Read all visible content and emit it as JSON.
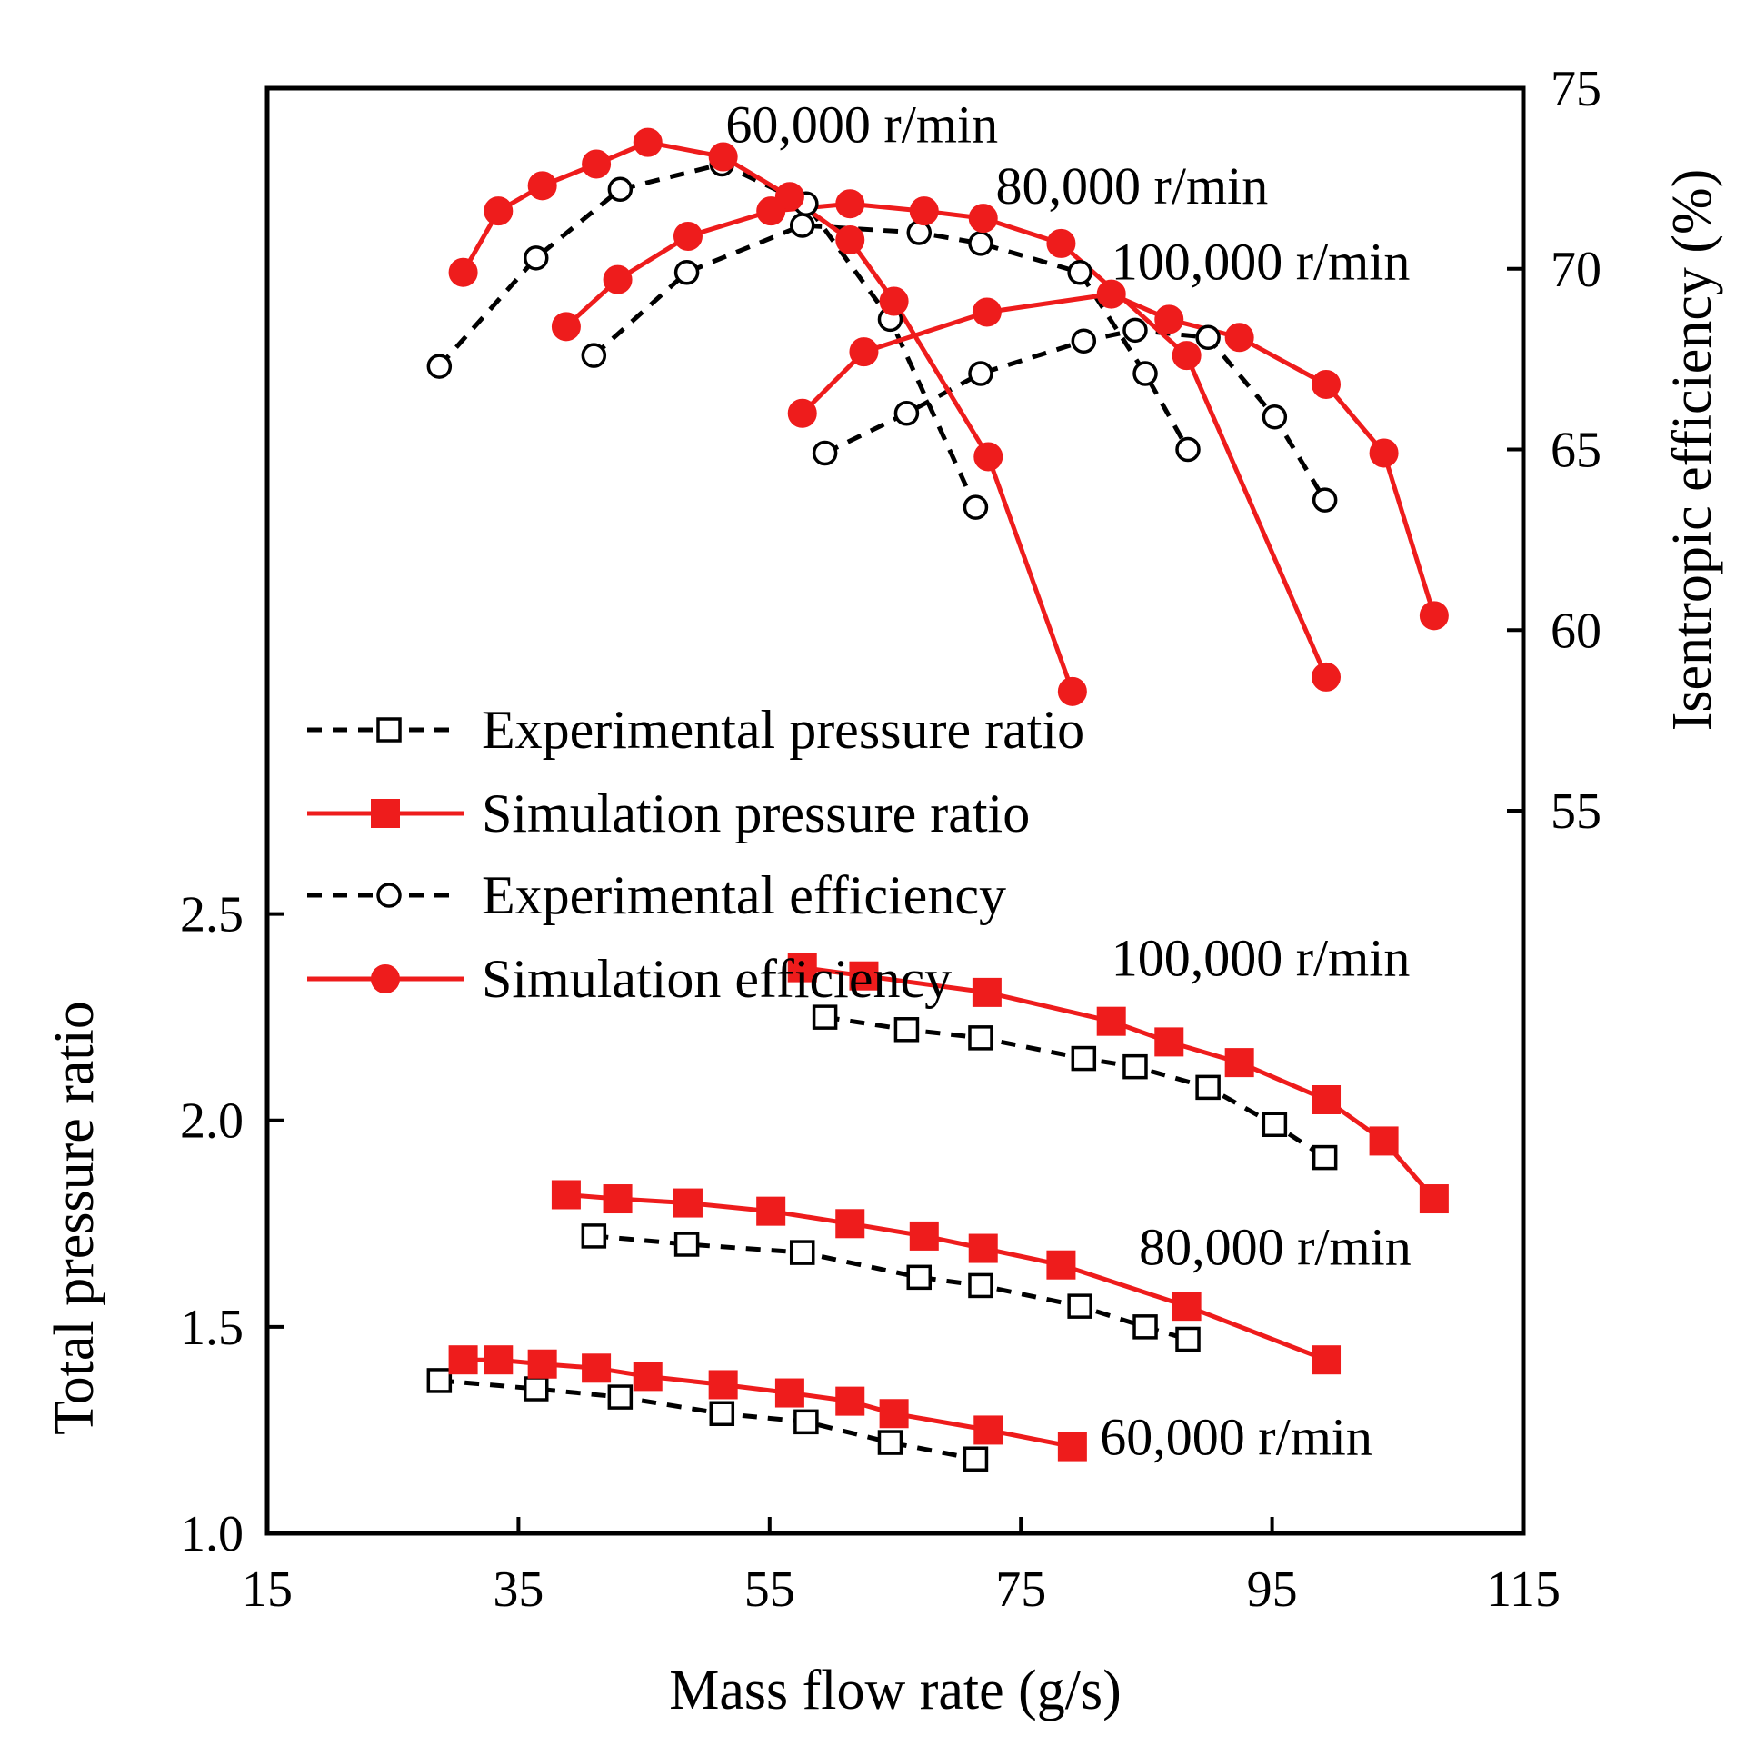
{
  "chart_data": {
    "type": "line",
    "xlabel": "Mass flow rate (g/s)",
    "ylabel_left": "Total pressure ratio",
    "ylabel_right": "Isentropic efficiency (%)",
    "xlim": [
      15,
      115
    ],
    "ylim_left": [
      1.0,
      4.5
    ],
    "ylim_right": [
      35,
      75
    ],
    "x_ticks": [
      15,
      35,
      55,
      75,
      95,
      115
    ],
    "y_ticks_left": [
      1.0,
      1.5,
      2.0,
      2.5
    ],
    "y_tick_labels_left": [
      "1.0",
      "1.5",
      "2.0",
      "2.5"
    ],
    "y_ticks_right": [
      55,
      60,
      65,
      70,
      75
    ],
    "colors": {
      "experimental": "#000000",
      "simulation": "#ee1c1c"
    },
    "legend": {
      "position": "middle-left",
      "entries": [
        {
          "label": "Experimental pressure ratio",
          "line": "dashed",
          "color": "#000000",
          "marker": "open-square"
        },
        {
          "label": "Simulation pressure ratio",
          "line": "solid",
          "color": "#ee1c1c",
          "marker": "filled-square"
        },
        {
          "label": "Experimental efficiency",
          "line": "dashed",
          "color": "#000000",
          "marker": "open-circle"
        },
        {
          "label": "Simulation efficiency",
          "line": "solid",
          "color": "#ee1c1c",
          "marker": "filled-circle"
        }
      ]
    },
    "series": [
      {
        "name": "Experimental pressure ratio 60,000 r/min",
        "axis": "left",
        "style": "exp",
        "marker": "square",
        "x": [
          28.7,
          36.4,
          43.1,
          51.2,
          57.9,
          64.6,
          71.4
        ],
        "y": [
          1.37,
          1.35,
          1.33,
          1.29,
          1.27,
          1.22,
          1.18
        ]
      },
      {
        "name": "Experimental pressure ratio 80,000 r/min",
        "axis": "left",
        "style": "exp",
        "marker": "square",
        "x": [
          41.0,
          48.4,
          57.6,
          66.9,
          71.8,
          79.7,
          84.9,
          88.3
        ],
        "y": [
          1.72,
          1.7,
          1.68,
          1.62,
          1.6,
          1.55,
          1.5,
          1.47
        ]
      },
      {
        "name": "Experimental pressure ratio 100,000 r/min",
        "axis": "left",
        "style": "exp",
        "marker": "square",
        "x": [
          59.4,
          65.9,
          71.8,
          80.0,
          84.1,
          89.9,
          95.2,
          99.2
        ],
        "y": [
          2.25,
          2.22,
          2.2,
          2.15,
          2.13,
          2.08,
          1.99,
          1.91
        ]
      },
      {
        "name": "Simulation pressure ratio 60,000 r/min",
        "axis": "left",
        "style": "sim",
        "marker": "square",
        "x": [
          30.6,
          33.4,
          36.9,
          41.2,
          45.3,
          51.3,
          56.6,
          61.4,
          64.9,
          72.4,
          79.1
        ],
        "y": [
          1.42,
          1.42,
          1.41,
          1.4,
          1.38,
          1.36,
          1.34,
          1.32,
          1.29,
          1.25,
          1.21
        ]
      },
      {
        "name": "Simulation pressure ratio 80,000 r/min",
        "axis": "left",
        "style": "sim",
        "marker": "square",
        "x": [
          38.8,
          42.9,
          48.5,
          55.1,
          61.4,
          67.3,
          72.0,
          78.2,
          88.2,
          99.3
        ],
        "y": [
          1.82,
          1.81,
          1.8,
          1.78,
          1.75,
          1.72,
          1.69,
          1.65,
          1.55,
          1.42
        ]
      },
      {
        "name": "Simulation pressure ratio 100,000 r/min",
        "axis": "left",
        "style": "sim",
        "marker": "square",
        "x": [
          57.6,
          62.5,
          72.3,
          82.2,
          86.8,
          92.4,
          99.3,
          103.9,
          107.9
        ],
        "y": [
          2.37,
          2.35,
          2.31,
          2.24,
          2.19,
          2.14,
          2.05,
          1.95,
          1.81
        ]
      },
      {
        "name": "Experimental efficiency 60,000 r/min",
        "axis": "right",
        "style": "exp",
        "marker": "circle",
        "x": [
          28.7,
          36.4,
          43.1,
          51.2,
          57.9,
          64.6,
          71.4
        ],
        "y": [
          67.3,
          70.3,
          72.2,
          72.9,
          71.8,
          68.6,
          63.4
        ]
      },
      {
        "name": "Experimental efficiency 80,000 r/min",
        "axis": "right",
        "style": "exp",
        "marker": "circle",
        "x": [
          41.0,
          48.4,
          57.6,
          66.9,
          71.8,
          79.7,
          84.9,
          88.3
        ],
        "y": [
          67.6,
          69.9,
          71.2,
          71.0,
          70.7,
          69.9,
          67.1,
          65.0
        ]
      },
      {
        "name": "Experimental efficiency 100,000 r/min",
        "axis": "right",
        "style": "exp",
        "marker": "circle",
        "x": [
          59.4,
          65.9,
          71.8,
          80.0,
          84.1,
          89.9,
          95.2,
          99.2
        ],
        "y": [
          64.9,
          66.0,
          67.1,
          68.0,
          68.3,
          68.1,
          65.9,
          63.6
        ]
      },
      {
        "name": "Simulation efficiency 60,000 r/min",
        "axis": "right",
        "style": "sim",
        "marker": "circle",
        "x": [
          30.6,
          33.4,
          36.9,
          41.2,
          45.3,
          51.3,
          56.6,
          61.4,
          64.9,
          72.4,
          79.1
        ],
        "y": [
          69.9,
          71.6,
          72.3,
          72.9,
          73.5,
          73.1,
          72.0,
          70.8,
          69.1,
          64.8,
          58.3
        ]
      },
      {
        "name": "Simulation efficiency 80,000 r/min",
        "axis": "right",
        "style": "sim",
        "marker": "circle",
        "x": [
          38.8,
          42.9,
          48.5,
          55.1,
          61.4,
          67.3,
          72.0,
          78.2,
          88.2,
          99.3
        ],
        "y": [
          68.4,
          69.7,
          70.9,
          71.6,
          71.8,
          71.6,
          71.4,
          70.7,
          67.6,
          58.7
        ]
      },
      {
        "name": "Simulation efficiency 100,000 r/min",
        "axis": "right",
        "style": "sim",
        "marker": "circle",
        "x": [
          57.6,
          62.5,
          72.3,
          82.2,
          86.8,
          92.4,
          99.3,
          103.9,
          107.9
        ],
        "y": [
          66.0,
          67.7,
          68.8,
          69.3,
          68.6,
          68.1,
          66.8,
          64.9,
          60.4
        ]
      }
    ],
    "annotations": [
      {
        "name": "label-60k-efficiency",
        "text": "60,000 r/min",
        "x": 51.5,
        "y_right": 73.5
      },
      {
        "name": "label-80k-efficiency",
        "text": "80,000 r/min",
        "x": 73.0,
        "y_right": 71.8
      },
      {
        "name": "label-100k-efficiency",
        "text": "100,000 r/min",
        "x": 82.2,
        "y_right": 69.7
      },
      {
        "name": "label-100k-pressure",
        "text": "100,000 r/min",
        "x": 82.2,
        "y_left": 2.35
      },
      {
        "name": "label-80k-pressure",
        "text": "80,000 r/min",
        "x": 84.4,
        "y_left": 1.65
      },
      {
        "name": "label-60k-pressure",
        "text": "60,000 r/min",
        "x": 81.3,
        "y_left": 1.19
      }
    ]
  }
}
